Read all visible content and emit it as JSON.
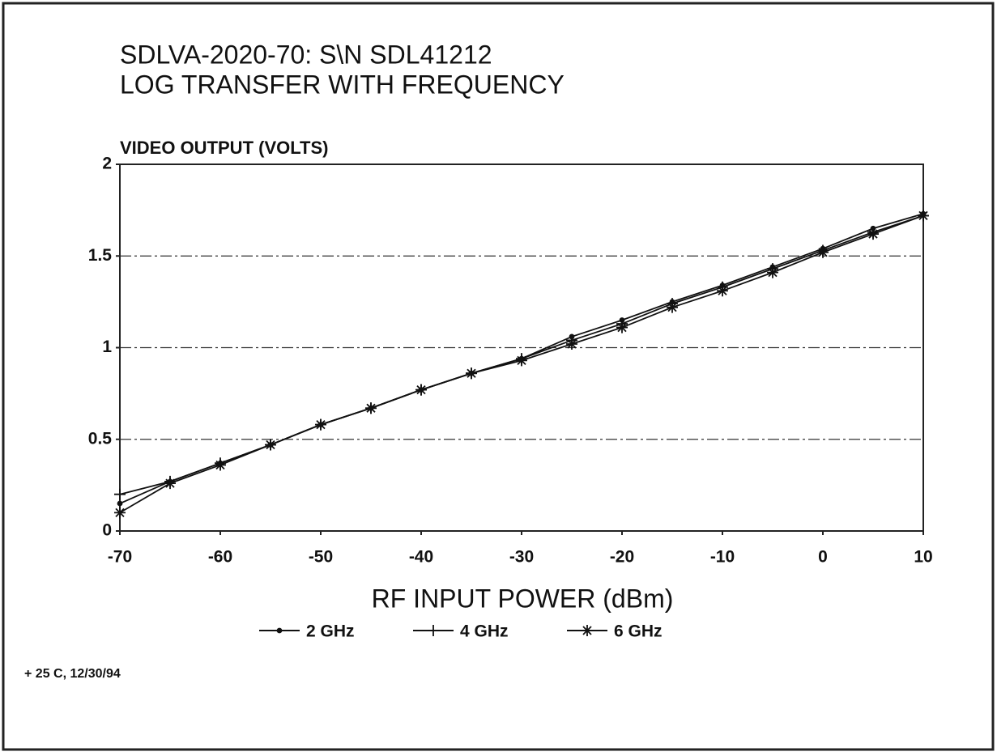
{
  "chart_data": {
    "type": "line",
    "title": "SDLVA-2020-70: S\\N SDL41212",
    "subtitle": "LOG TRANSFER WITH FREQUENCY",
    "y_label": "VIDEO OUTPUT (VOLTS)",
    "x_label": "RF INPUT POWER (dBm)",
    "annotation": "+ 25 C, 12/30/94",
    "x": [
      -70,
      -65,
      -60,
      -55,
      -50,
      -45,
      -40,
      -35,
      -30,
      -25,
      -20,
      -15,
      -10,
      -5,
      0,
      5,
      10
    ],
    "series": [
      {
        "name": "2 GHz",
        "color": "#111111",
        "marker": "dot",
        "values": [
          0.15,
          0.27,
          0.37,
          0.47,
          0.58,
          0.67,
          0.77,
          0.86,
          0.94,
          1.06,
          1.15,
          1.25,
          1.34,
          1.44,
          1.54,
          1.65,
          1.73
        ]
      },
      {
        "name": "4 GHz",
        "color": "#111111",
        "marker": "plus",
        "values": [
          0.2,
          0.27,
          0.37,
          0.47,
          0.58,
          0.67,
          0.77,
          0.86,
          0.94,
          1.04,
          1.13,
          1.24,
          1.33,
          1.43,
          1.53,
          1.63,
          1.72
        ]
      },
      {
        "name": "6 GHz",
        "color": "#111111",
        "marker": "asterisk",
        "values": [
          0.1,
          0.26,
          0.36,
          0.47,
          0.58,
          0.67,
          0.77,
          0.86,
          0.93,
          1.02,
          1.11,
          1.22,
          1.31,
          1.41,
          1.52,
          1.62,
          1.72
        ]
      }
    ],
    "xlim": [
      -70,
      10
    ],
    "xticks": [
      -70,
      -60,
      -50,
      -40,
      -30,
      -20,
      -10,
      0,
      10
    ],
    "ylim": [
      0,
      2
    ],
    "yticks": [
      0,
      0.5,
      1,
      1.5,
      2
    ],
    "grid": true,
    "legend": "bottom"
  }
}
